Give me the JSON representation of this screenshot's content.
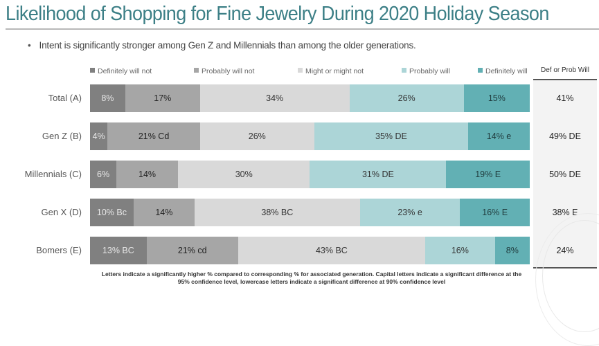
{
  "header": {
    "title": "Likelihood of Shopping for Fine Jewelry During 2020 Holiday Season",
    "bullet_mark": "•",
    "bullet": "Intent is significantly stronger among Gen Z and Millennials than among the older generations."
  },
  "footnote": {
    "line1": "Letters indicate a significantly higher % compared to corresponding % for associated generation. Capital letters indicate a significant difference at the",
    "line2": "95% confidence level, lowercase letters indicate a significant difference at 90%  confidence level"
  },
  "chart_data": {
    "type": "bar",
    "orientation": "horizontal-stacked-100",
    "title": "Likelihood of Shopping for Fine Jewelry During 2020 Holiday Season",
    "xlabel": "",
    "ylabel": "",
    "xlim": [
      0,
      100
    ],
    "legend_position": "top",
    "categories": [
      "Total (A)",
      "Gen Z (B)",
      "Millennials (C)",
      "Gen X (D)",
      "Bomers (E)"
    ],
    "series": [
      {
        "name": "Definitely will not",
        "color": "#808080",
        "text_color": "#e8e8e8",
        "values": [
          8,
          4,
          6,
          10,
          13
        ],
        "labels": [
          "8%",
          "4%",
          "6%",
          "10% Bc",
          "13% BC"
        ]
      },
      {
        "name": "Probably will not",
        "color": "#a6a6a6",
        "text_color": "#222222",
        "values": [
          17,
          21,
          14,
          14,
          21
        ],
        "labels": [
          "17%",
          "21% Cd",
          "14%",
          "14%",
          "21% cd"
        ]
      },
      {
        "name": "Might or might not",
        "color": "#d9d9d9",
        "text_color": "#333333",
        "values": [
          34,
          26,
          30,
          38,
          43
        ],
        "labels": [
          "34%",
          "26%",
          "30%",
          "38% BC",
          "43% BC"
        ]
      },
      {
        "name": "Probably will",
        "color": "#acd5d7",
        "text_color": "#333333",
        "values": [
          26,
          35,
          31,
          23,
          16
        ],
        "labels": [
          "26%",
          "35% DE",
          "31% DE",
          "23% e",
          "16%"
        ]
      },
      {
        "name": "Definitely will",
        "color": "#62b0b4",
        "text_color": "#1f3a3c",
        "values": [
          15,
          14,
          19,
          16,
          8
        ],
        "labels": [
          "15%",
          "14% e",
          "19% E",
          "16% E",
          "8%"
        ]
      }
    ],
    "side_column": {
      "header": "Def or Prob Will",
      "values": [
        "41%",
        "49% DE",
        "50% DE",
        "38% E",
        "24%"
      ]
    }
  }
}
